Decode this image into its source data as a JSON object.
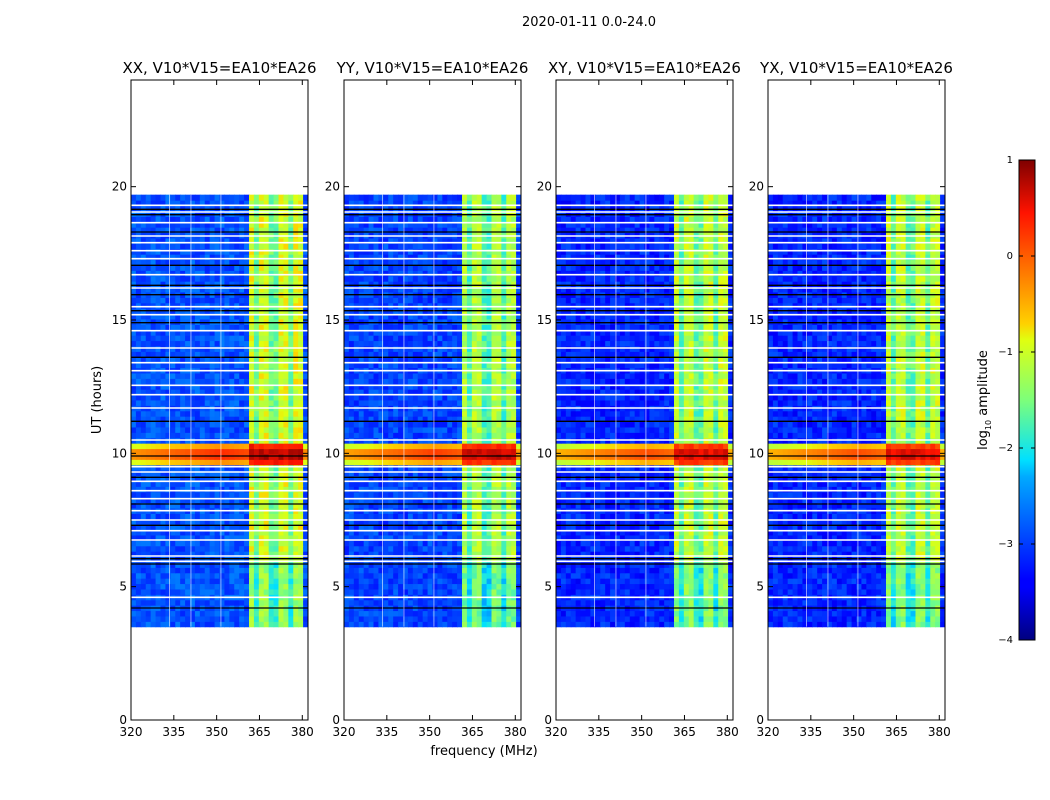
{
  "suptitle": "2020-01-11 0.0-24.0",
  "xlabel": "frequency (MHz)",
  "ylabel": "UT (hours)",
  "colorbar": {
    "label_prefix": "log",
    "label_sub": "10",
    "label_suffix": " amplitude",
    "range": [
      -4,
      1
    ],
    "ticks": [
      1,
      0,
      -1,
      -2,
      -3,
      -4
    ],
    "tick_labels": [
      "1",
      "0",
      "−1",
      "−2",
      "−3",
      "−4"
    ],
    "colormap": "jet"
  },
  "chart_data": {
    "type": "heatmap",
    "xlim": [
      320,
      382
    ],
    "ylim": [
      0,
      24
    ],
    "x_ticks": [
      320,
      335,
      350,
      365,
      380
    ],
    "x_tick_labels": [
      "320",
      "335",
      "350",
      "365",
      "380"
    ],
    "y_ticks": [
      0,
      5,
      10,
      15,
      20
    ],
    "y_tick_labels": [
      "0",
      "5",
      "10",
      "15",
      "20"
    ],
    "data_time_range_hours": [
      3.5,
      19.7
    ],
    "rfi_band_mhz": [
      360.5,
      379.5
    ],
    "rfi_channels_mhz": [
      361,
      367,
      373,
      379
    ],
    "strong_interference_hours": [
      9.6,
      10.3
    ],
    "panels": [
      {
        "title": "XX, V10*V15=EA10*EA26",
        "baseline_log_amp": -2.9,
        "rfi_log_amp": -1.3,
        "peak_log_amp": 0.6
      },
      {
        "title": "YY, V10*V15=EA10*EA26",
        "baseline_log_amp": -3.0,
        "rfi_log_amp": -1.5,
        "peak_log_amp": 0.5
      },
      {
        "title": "XY, V10*V15=EA10*EA26",
        "baseline_log_amp": -3.2,
        "rfi_log_amp": -1.4,
        "peak_log_amp": 0.4
      },
      {
        "title": "YX, V10*V15=EA10*EA26",
        "baseline_log_amp": -3.2,
        "rfi_log_amp": -1.4,
        "peak_log_amp": 0.4
      }
    ]
  }
}
